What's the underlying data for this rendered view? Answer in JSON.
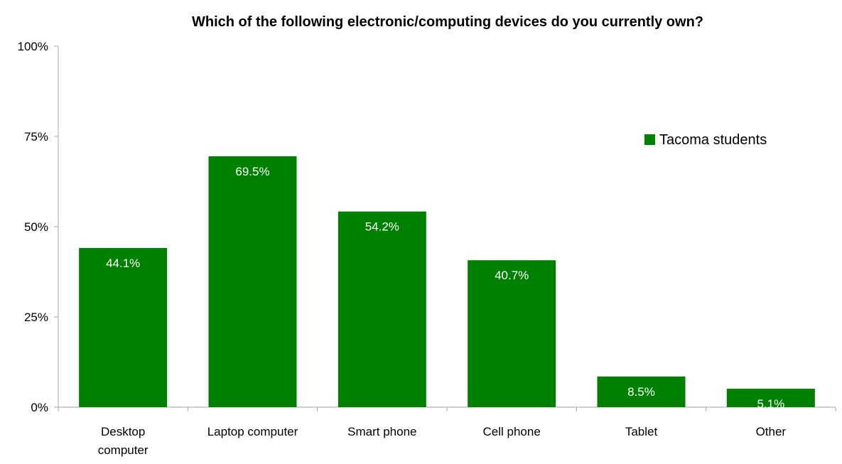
{
  "chart_data": {
    "type": "bar",
    "title": "Which of the following electronic/computing devices do you currently own?",
    "xlabel": "",
    "ylabel": "",
    "categories": [
      "Desktop computer",
      "Laptop computer",
      "Smart phone",
      "Cell phone",
      "Tablet",
      "Other"
    ],
    "series": [
      {
        "name": "Tacoma students",
        "values": [
          44.1,
          69.5,
          54.2,
          40.7,
          8.5,
          5.1
        ],
        "data_labels": [
          "44.1%",
          "69.5%",
          "54.2%",
          "40.7%",
          "8.5%",
          "5.1%"
        ],
        "color": "#008000"
      }
    ],
    "ylim": [
      0,
      100
    ],
    "yticks": [
      0,
      25,
      50,
      75,
      100
    ],
    "ytick_labels": [
      "0%",
      "25%",
      "50%",
      "75%",
      "100%"
    ],
    "grid": false,
    "legend_position": "top-right",
    "colors": {
      "axis": "#a6a6a6",
      "bar": "#008000",
      "label": "#ffffff"
    }
  }
}
